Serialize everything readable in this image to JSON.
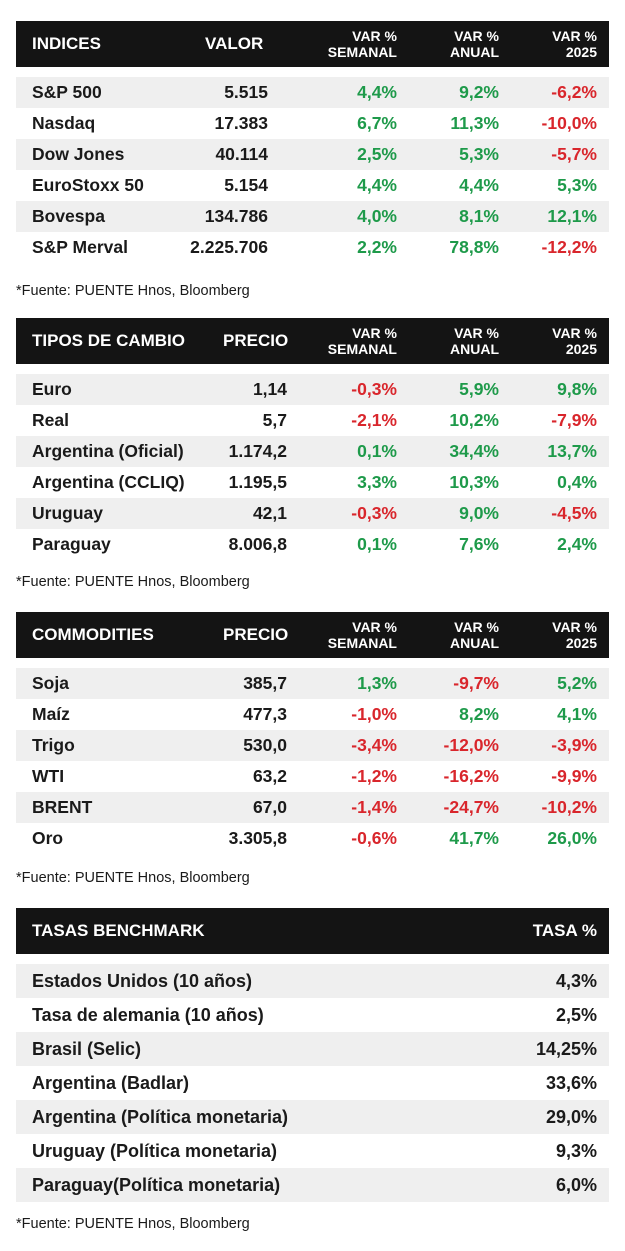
{
  "indices": {
    "headers": [
      "INDICES",
      "VALOR",
      [
        "VAR %",
        "SEMANAL"
      ],
      [
        "VAR %",
        "ANUAL"
      ],
      [
        "VAR %",
        "2025"
      ]
    ],
    "rows": [
      [
        "S&P 500",
        "5.515",
        "4,4%",
        "9,2%",
        "-6,2%"
      ],
      [
        "Nasdaq",
        "17.383",
        "6,7%",
        "11,3%",
        "-10,0%"
      ],
      [
        "Dow Jones",
        "40.114",
        "2,5%",
        "5,3%",
        "-5,7%"
      ],
      [
        "EuroStoxx 50",
        "5.154",
        "4,4%",
        "4,4%",
        "5,3%"
      ],
      [
        "Bovespa",
        "134.786",
        "4,0%",
        "8,1%",
        "12,1%"
      ],
      [
        "S&P Merval",
        "2.225.706",
        "2,2%",
        "78,8%",
        "-12,2%"
      ]
    ],
    "source": "*Fuente: PUENTE Hnos, Bloomberg"
  },
  "tipos_cambio": {
    "headers": [
      "TIPOS DE CAMBIO",
      "PRECIO",
      [
        "VAR %",
        "SEMANAL"
      ],
      [
        "VAR %",
        "ANUAL"
      ],
      [
        "VAR %",
        "2025"
      ]
    ],
    "rows": [
      [
        "Euro",
        "1,14",
        "-0,3%",
        "5,9%",
        "9,8%"
      ],
      [
        "Real",
        "5,7",
        "-2,1%",
        "10,2%",
        "-7,9%"
      ],
      [
        "Argentina (Oficial)",
        "1.174,2",
        "0,1%",
        "34,4%",
        "13,7%"
      ],
      [
        "Argentina (CCLIQ)",
        "1.195,5",
        "3,3%",
        "10,3%",
        "0,4%"
      ],
      [
        "Uruguay",
        "42,1",
        "-0,3%",
        "9,0%",
        "-4,5%"
      ],
      [
        "Paraguay",
        "8.006,8",
        "0,1%",
        "7,6%",
        "2,4%"
      ]
    ],
    "source": "*Fuente: PUENTE Hnos, Bloomberg"
  },
  "commodities": {
    "headers": [
      "COMMODITIES",
      "PRECIO",
      [
        "VAR %",
        "SEMANAL"
      ],
      [
        "VAR %",
        "ANUAL"
      ],
      [
        "VAR %",
        "2025"
      ]
    ],
    "rows": [
      [
        "Soja",
        "385,7",
        "1,3%",
        "-9,7%",
        "5,2%"
      ],
      [
        "Maíz",
        "477,3",
        "-1,0%",
        "8,2%",
        "4,1%"
      ],
      [
        "Trigo",
        "530,0",
        "-3,4%",
        "-12,0%",
        "-3,9%"
      ],
      [
        "WTI",
        "63,2",
        "-1,2%",
        "-16,2%",
        "-9,9%"
      ],
      [
        "BRENT",
        "67,0",
        "-1,4%",
        "-24,7%",
        "-10,2%"
      ],
      [
        "Oro",
        "3.305,8",
        "-0,6%",
        "41,7%",
        "26,0%"
      ]
    ],
    "source": "*Fuente: PUENTE Hnos, Bloomberg"
  },
  "tasas": {
    "headers": [
      "TASAS BENCHMARK",
      "TASA %"
    ],
    "rows": [
      [
        "Estados Unidos (10 años)",
        "4,3%"
      ],
      [
        "Tasa de alemania (10 años)",
        "2,5%"
      ],
      [
        "Brasil (Selic)",
        "14,25%"
      ],
      [
        "Argentina (Badlar)",
        "33,6%"
      ],
      [
        "Argentina (Política monetaria)",
        "29,0%"
      ],
      [
        "Uruguay (Política monetaria)",
        "9,3%"
      ],
      [
        "Paraguay(Política monetaria)",
        "6,0%"
      ]
    ],
    "source": "*Fuente: PUENTE Hnos, Bloomberg"
  },
  "colors": {
    "positive": "#1e9a4a",
    "negative": "#d9262c",
    "header_bg": "#141414",
    "stripe": "#efefef"
  }
}
